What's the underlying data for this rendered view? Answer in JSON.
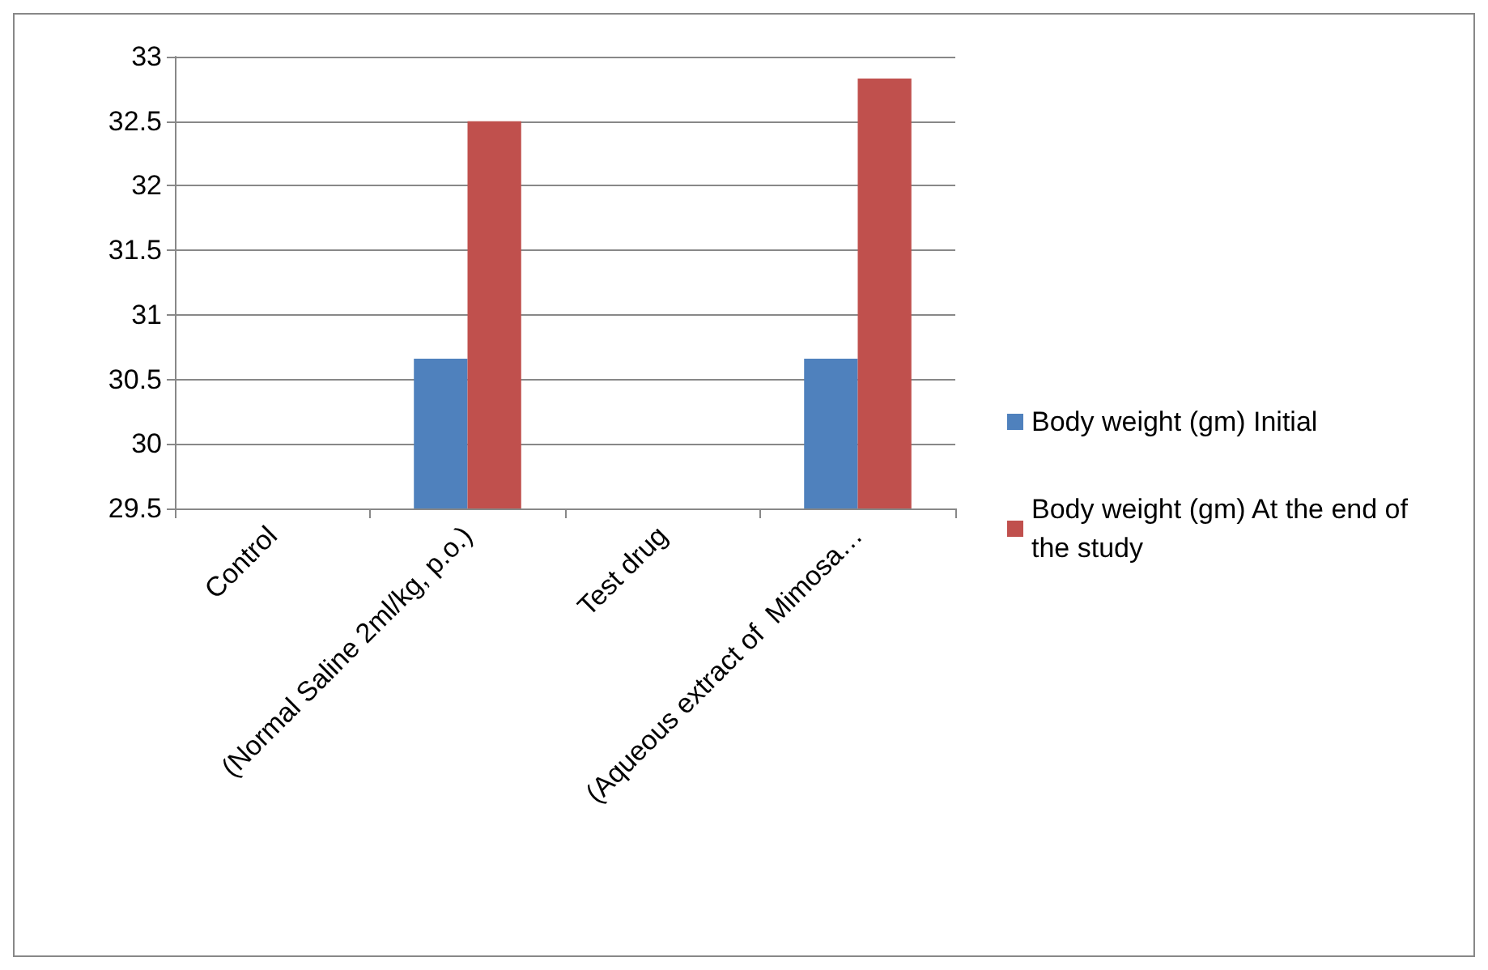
{
  "chart_data": {
    "type": "bar",
    "categories": [
      "Control",
      "(Normal Saline 2ml/kg, p.o.)",
      "Test drug",
      "(Aqueous extract of  Mimosa…"
    ],
    "series": [
      {
        "name": "Body weight (gm) Initial",
        "color": "#4f81bd",
        "values": [
          null,
          30.66,
          null,
          30.66
        ]
      },
      {
        "name": "Body weight (gm) At the end of the study",
        "color": "#c0504d",
        "values": [
          null,
          32.5,
          null,
          32.83
        ]
      }
    ],
    "ylim": [
      29.5,
      33
    ],
    "yticks": [
      29.5,
      30,
      30.5,
      31,
      31.5,
      32,
      32.5,
      33
    ],
    "grid": "y",
    "legend": "right"
  }
}
